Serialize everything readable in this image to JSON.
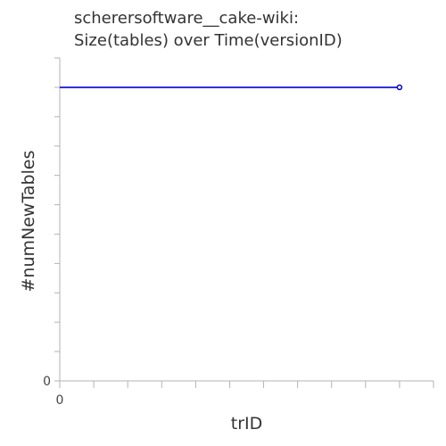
{
  "chart_data": {
    "type": "line",
    "title_lines": [
      "scherersoftware__cake-wiki:",
      "Size(tables) over Time(versionID)"
    ],
    "xlabel": "trID",
    "ylabel": "#numNewTables",
    "x_tick_labels": [
      "0"
    ],
    "y_tick_labels": [
      "0"
    ],
    "xlim": [
      0,
      11
    ],
    "ylim": [
      0,
      11
    ],
    "series": [
      {
        "x": [
          0,
          10
        ],
        "y": [
          10,
          10
        ],
        "color": "#0000cc",
        "markers": [
          false,
          true
        ]
      }
    ],
    "grid": false,
    "legend": "none"
  }
}
